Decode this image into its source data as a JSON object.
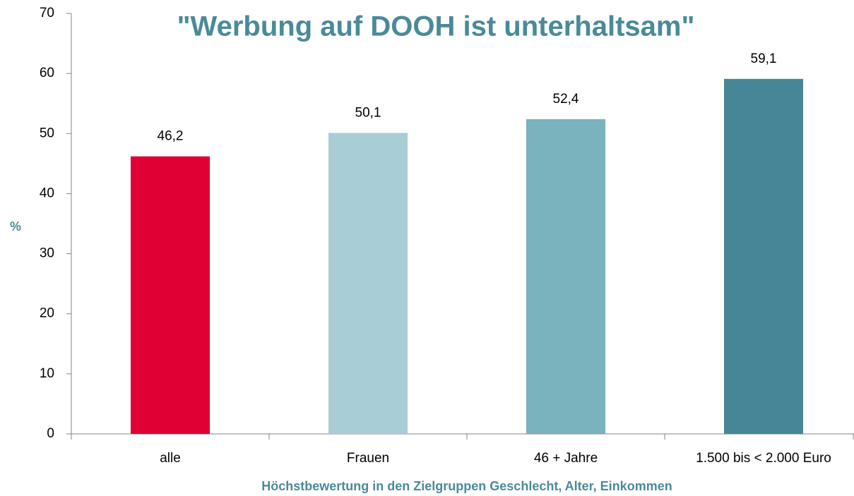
{
  "chart_data": {
    "type": "bar",
    "title": "\"Werbung auf DOOH ist unterhaltsam\"",
    "y_label": "%",
    "x_label": "Höchstbewertung in den Zielgruppen Geschlecht, Alter, Einkommen",
    "categories": [
      "alle",
      "Frauen",
      "46 + Jahre",
      "1.500 bis < 2.000 Euro"
    ],
    "values": [
      46.2,
      50.1,
      52.4,
      59.1
    ],
    "value_labels": [
      "46,2",
      "50,1",
      "52,4",
      "59,1"
    ],
    "colors": [
      "#e00034",
      "#a8cdd6",
      "#7ab2be",
      "#478696"
    ],
    "ylim": [
      0,
      70
    ],
    "yticks": [
      0,
      10,
      20,
      30,
      40,
      50,
      60,
      70
    ],
    "grid": false
  }
}
